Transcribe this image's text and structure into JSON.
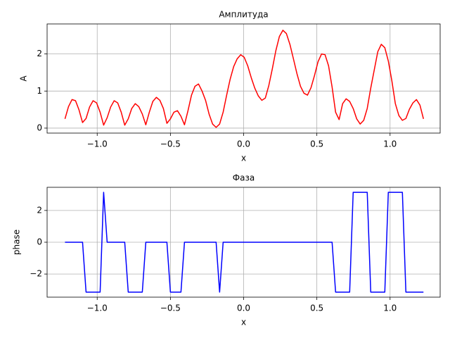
{
  "chart_data": [
    {
      "type": "line",
      "title": "Амплитуда",
      "xlabel": "x",
      "ylabel": "A",
      "color": "#ff0000",
      "x": [
        -1.22,
        -1.196,
        -1.172,
        -1.148,
        -1.124,
        -1.1,
        -1.076,
        -1.052,
        -1.028,
        -1.004,
        -0.98,
        -0.956,
        -0.932,
        -0.908,
        -0.884,
        -0.86,
        -0.836,
        -0.812,
        -0.788,
        -0.764,
        -0.74,
        -0.716,
        -0.692,
        -0.668,
        -0.644,
        -0.62,
        -0.596,
        -0.572,
        -0.548,
        -0.524,
        -0.5,
        -0.476,
        -0.452,
        -0.428,
        -0.404,
        -0.38,
        -0.356,
        -0.332,
        -0.308,
        -0.284,
        -0.26,
        -0.236,
        -0.212,
        -0.188,
        -0.164,
        -0.14,
        -0.116,
        -0.092,
        -0.068,
        -0.044,
        -0.02,
        0.004,
        0.028,
        0.052,
        0.076,
        0.1,
        0.124,
        0.148,
        0.172,
        0.196,
        0.22,
        0.244,
        0.268,
        0.292,
        0.316,
        0.34,
        0.364,
        0.388,
        0.412,
        0.436,
        0.46,
        0.484,
        0.508,
        0.532,
        0.556,
        0.58,
        0.604,
        0.628,
        0.652,
        0.676,
        0.7,
        0.724,
        0.748,
        0.772,
        0.796,
        0.82,
        0.844,
        0.868,
        0.892,
        0.916,
        0.94,
        0.964,
        0.988,
        1.012,
        1.036,
        1.06,
        1.084,
        1.108,
        1.132,
        1.156,
        1.18,
        1.204,
        1.228
      ],
      "values": [
        0.25,
        0.58,
        0.77,
        0.74,
        0.49,
        0.15,
        0.26,
        0.57,
        0.74,
        0.68,
        0.43,
        0.08,
        0.28,
        0.57,
        0.74,
        0.68,
        0.43,
        0.08,
        0.25,
        0.53,
        0.66,
        0.58,
        0.38,
        0.09,
        0.43,
        0.72,
        0.83,
        0.75,
        0.53,
        0.13,
        0.25,
        0.43,
        0.47,
        0.32,
        0.09,
        0.47,
        0.89,
        1.13,
        1.19,
        1.0,
        0.75,
        0.38,
        0.11,
        0.02,
        0.11,
        0.43,
        0.89,
        1.32,
        1.66,
        1.87,
        1.98,
        1.91,
        1.68,
        1.36,
        1.08,
        0.87,
        0.75,
        0.81,
        1.15,
        1.6,
        2.09,
        2.47,
        2.64,
        2.55,
        2.26,
        1.87,
        1.47,
        1.13,
        0.94,
        0.89,
        1.09,
        1.42,
        1.79,
        2.0,
        1.98,
        1.68,
        1.11,
        0.43,
        0.23,
        0.66,
        0.79,
        0.72,
        0.53,
        0.25,
        0.11,
        0.21,
        0.53,
        1.08,
        1.57,
        2.06,
        2.26,
        2.17,
        1.81,
        1.28,
        0.66,
        0.34,
        0.21,
        0.26,
        0.51,
        0.68,
        0.77,
        0.62,
        0.25
      ],
      "xlim": [
        -1.342,
        1.342
      ],
      "ylim": [
        -0.134,
        2.81
      ],
      "xticks": [
        {
          "value": -1.0,
          "label": "−1.0"
        },
        {
          "value": -0.5,
          "label": "−0.5"
        },
        {
          "value": 0,
          "label": "0.0"
        },
        {
          "value": 0.5,
          "label": "0.5"
        },
        {
          "value": 1.0,
          "label": "1.0"
        }
      ],
      "yticks": [
        0,
        1,
        2
      ],
      "grid": true
    },
    {
      "type": "line",
      "title": "Фаза",
      "xlabel": "x",
      "ylabel": "phase",
      "color": "#0000ff",
      "x": [
        -1.22,
        -1.196,
        -1.172,
        -1.148,
        -1.124,
        -1.1,
        -1.076,
        -1.052,
        -1.028,
        -1.004,
        -0.98,
        -0.956,
        -0.932,
        -0.908,
        -0.884,
        -0.86,
        -0.836,
        -0.812,
        -0.788,
        -0.764,
        -0.74,
        -0.716,
        -0.692,
        -0.668,
        -0.644,
        -0.62,
        -0.596,
        -0.572,
        -0.548,
        -0.524,
        -0.5,
        -0.476,
        -0.452,
        -0.428,
        -0.404,
        -0.38,
        -0.356,
        -0.332,
        -0.308,
        -0.284,
        -0.26,
        -0.236,
        -0.212,
        -0.188,
        -0.164,
        -0.14,
        -0.116,
        -0.092,
        -0.068,
        -0.044,
        -0.02,
        0.004,
        0.028,
        0.052,
        0.076,
        0.1,
        0.124,
        0.148,
        0.172,
        0.196,
        0.22,
        0.244,
        0.268,
        0.292,
        0.316,
        0.34,
        0.364,
        0.388,
        0.412,
        0.436,
        0.46,
        0.484,
        0.508,
        0.532,
        0.556,
        0.58,
        0.604,
        0.628,
        0.652,
        0.676,
        0.7,
        0.724,
        0.748,
        0.772,
        0.796,
        0.82,
        0.844,
        0.868,
        0.892,
        0.916,
        0.94,
        0.964,
        0.988,
        1.012,
        1.036,
        1.06,
        1.084,
        1.108,
        1.132,
        1.156,
        1.18,
        1.204,
        1.228
      ],
      "values": [
        0,
        0,
        0,
        0,
        0,
        0,
        -3.14,
        -3.14,
        -3.14,
        -3.14,
        -3.14,
        3.14,
        0,
        0,
        0,
        0,
        0,
        0,
        -3.14,
        -3.14,
        -3.14,
        -3.14,
        -3.14,
        0,
        0,
        0,
        0,
        0,
        0,
        0,
        -3.14,
        -3.14,
        -3.14,
        -3.14,
        0,
        0,
        0,
        0,
        0,
        0,
        0,
        0,
        0,
        0,
        -3.14,
        0,
        0,
        0,
        0,
        0,
        0,
        0,
        0,
        0,
        0,
        0,
        0,
        0,
        0,
        0,
        0,
        0,
        0,
        0,
        0,
        0,
        0,
        0,
        0,
        0,
        0,
        0,
        0,
        0,
        0,
        0,
        0,
        -3.14,
        -3.14,
        -3.14,
        -3.14,
        -3.14,
        3.14,
        3.14,
        3.14,
        3.14,
        3.14,
        -3.14,
        -3.14,
        -3.14,
        -3.14,
        -3.14,
        3.14,
        3.14,
        3.14,
        3.14,
        3.14,
        -3.14,
        -3.14,
        -3.14,
        -3.14,
        -3.14,
        -3.14
      ],
      "xlim": [
        -1.342,
        1.342
      ],
      "ylim": [
        -3.456,
        3.456
      ],
      "xticks": [
        {
          "value": -1.0,
          "label": "−1.0"
        },
        {
          "value": -0.5,
          "label": "−0.5"
        },
        {
          "value": 0,
          "label": "0.0"
        },
        {
          "value": 0.5,
          "label": "0.5"
        },
        {
          "value": 1.0,
          "label": "1.0"
        }
      ],
      "yticks": [
        {
          "value": -2,
          "label": "−2"
        },
        0,
        2
      ],
      "grid": true
    }
  ]
}
